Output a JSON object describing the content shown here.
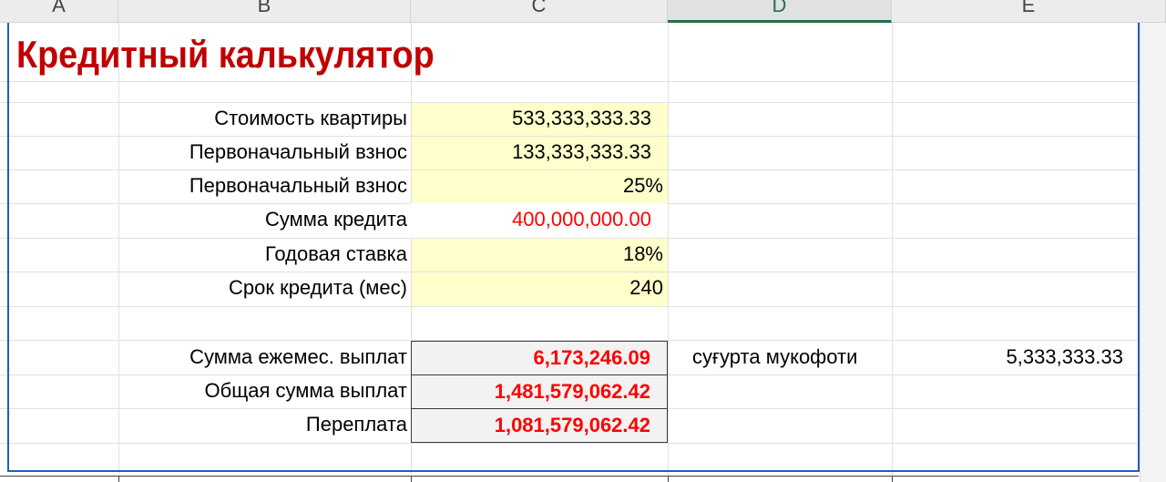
{
  "columns": [
    "A",
    "B",
    "C",
    "D",
    "E"
  ],
  "title": "Кредитный калькулятор",
  "inputs": [
    {
      "label": "Стоимость квартиры",
      "value": "533,333,333.33"
    },
    {
      "label": "Первоначальный взнос",
      "value": "133,333,333.33"
    },
    {
      "label": "Первоначальный взнос",
      "value": "25%"
    },
    {
      "label": "Сумма кредита",
      "value": "400,000,000.00"
    },
    {
      "label": "Годовая ставка",
      "value": "18%"
    },
    {
      "label": "Срок кредита (мес)",
      "value": "240"
    }
  ],
  "results": [
    {
      "label": "Сумма ежемес. выплат",
      "value": "6,173,246.09"
    },
    {
      "label": "Общая сумма выплат",
      "value": "1,481,579,062.42"
    },
    {
      "label": "Переплата",
      "value": "1,081,579,062.42"
    }
  ],
  "insurance": {
    "label": "суғурта мукофоти",
    "value": "5,333,333.33"
  },
  "colors": {
    "title": "#c00000",
    "highlight": "#ff0000",
    "input_fill": "#ffffcc",
    "result_fill": "#f2f2f2",
    "active_header": "#217346"
  }
}
